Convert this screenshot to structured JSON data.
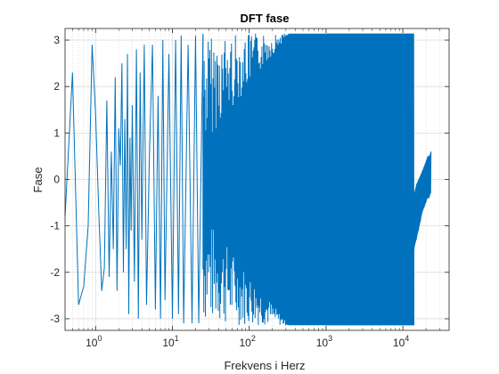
{
  "chart_data": {
    "type": "line",
    "title": "DFT fase",
    "xlabel": "Frekvens i Herz",
    "ylabel": "Fase",
    "x_scale": "log",
    "xlim": [
      0.4,
      40000
    ],
    "ylim": [
      -3.25,
      3.25
    ],
    "grid": true,
    "minor_grid": true,
    "x_ticks": [
      {
        "value": 1,
        "label_base": "10",
        "label_exp": "0"
      },
      {
        "value": 10,
        "label_base": "10",
        "label_exp": "1"
      },
      {
        "value": 100,
        "label_base": "10",
        "label_exp": "2"
      },
      {
        "value": 1000,
        "label_base": "10",
        "label_exp": "3"
      },
      {
        "value": 10000,
        "label_base": "10",
        "label_exp": "4"
      }
    ],
    "y_ticks": [
      {
        "value": 3,
        "label": "3"
      },
      {
        "value": 2,
        "label": "2"
      },
      {
        "value": 1,
        "label": "1"
      },
      {
        "value": 0,
        "label": "0"
      },
      {
        "value": -1,
        "label": "-1"
      },
      {
        "value": -2,
        "label": "-2"
      },
      {
        "value": -3,
        "label": "-3"
      }
    ],
    "series_color": "#0072BD",
    "series": [
      {
        "x": [
          0.4,
          0.5,
          0.6,
          0.7,
          0.8,
          0.9,
          1.0,
          1.1,
          1.2,
          1.3,
          1.4,
          1.5,
          1.6,
          1.7,
          1.8,
          1.9,
          2.0,
          2.1,
          2.2,
          2.3,
          2.4,
          2.5,
          2.6,
          2.7,
          2.8,
          2.9,
          3.0,
          3.2,
          3.4,
          3.6,
          3.8,
          4.0,
          4.3,
          4.6,
          5.0,
          5.5,
          6.0,
          6.5,
          7.0,
          7.5,
          8.0,
          9.0,
          10.0,
          11.0,
          12.0,
          13.0,
          14.0,
          16.0,
          18.0,
          20.0,
          22.0,
          25.0
        ],
        "y": [
          -0.8,
          2.3,
          -2.7,
          -2.3,
          -1.0,
          2.9,
          1.4,
          -0.7,
          -2.4,
          -1.9,
          1.7,
          -2.1,
          0.6,
          -1.5,
          2.2,
          -2.4,
          1.1,
          0.3,
          2.5,
          -2.0,
          1.3,
          -1.5,
          2.7,
          -2.9,
          0.9,
          -1.1,
          1.6,
          -2.2,
          2.8,
          -3.0,
          2.3,
          -1.3,
          2.9,
          -2.7,
          0.4,
          2.9,
          -2.8,
          1.8,
          -3.0,
          3.0,
          -2.6,
          2.7,
          -3.0,
          3.0,
          -2.9,
          3.1,
          -3.1,
          2.9,
          -3.1,
          3.1,
          -3.1,
          3.1
        ]
      }
    ],
    "dense_band": {
      "start_x": 25.0,
      "end_x": 14000.0,
      "min": -3.14,
      "max": 3.14
    },
    "tail": {
      "x": [
        14000,
        15000,
        16000,
        17000,
        18000,
        19000,
        20000,
        21000,
        22000,
        23000
      ],
      "y_low": [
        -1.5,
        -1.3,
        -1.1,
        -0.9,
        -0.7,
        -0.6,
        -0.5,
        -0.4,
        -0.4,
        -0.3
      ],
      "y_high": [
        -0.3,
        -0.1,
        0.0,
        0.1,
        0.2,
        0.3,
        0.4,
        0.5,
        0.5,
        0.6
      ]
    }
  }
}
